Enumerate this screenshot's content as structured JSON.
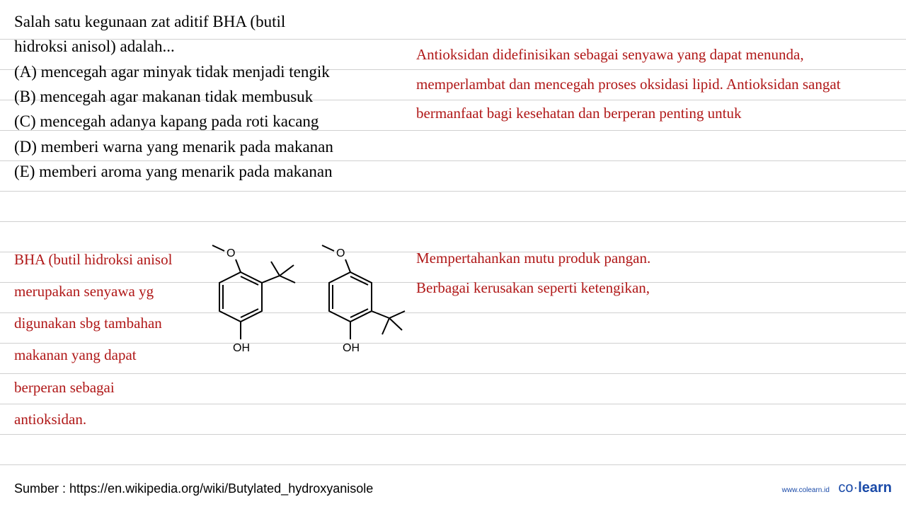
{
  "ruleLines": [
    55,
    98,
    141,
    184,
    227,
    270,
    313,
    356,
    399,
    442,
    485,
    528,
    571,
    614,
    657
  ],
  "question": {
    "intro_line1": "Salah satu kegunaan zat aditif BHA (butil",
    "intro_line2": "hidroksi anisol) adalah...",
    "options": {
      "A": "(A) mencegah agar minyak tidak menjadi tengik",
      "B": "(B) mencegah agar makanan tidak membusuk",
      "C": "(C) mencegah adanya kapang pada roti kacang",
      "D": "(D) memberi warna yang menarik pada makanan",
      "E": "(E) memberi aroma yang menarik pada makanan"
    }
  },
  "annotation_right_top": "Antioksidan didefinisikan sebagai senyawa yang dapat menunda, memperlambat dan mencegah proses oksidasi lipid. Antioksidan sangat bermanfaat bagi kesehatan dan berperan penting untuk",
  "annotation_right_mid_l1": "Mempertahankan mutu produk pangan.",
  "annotation_right_mid_l2": "Berbagai kerusakan seperti ketengikan,",
  "annotation_left": "BHA (butil hidroksi anisol merupakan senyawa yg digunakan sbg tambahan makanan yang dapat berperan sebagai antioksidan.",
  "chem": {
    "label_O": "O",
    "label_OH": "OH",
    "stroke": "#000000"
  },
  "source": "Sumber : https://en.wikipedia.org/wiki/Butylated_hydroxyanisole",
  "brand": {
    "url": "www.colearn.id",
    "name_prefix": "co",
    "name_dot": "·",
    "name_suffix": "learn"
  },
  "colors": {
    "annotation": "#b01818",
    "text": "#000000",
    "rule": "#d0d0d0",
    "brand": "#1a4aa8",
    "background": "#ffffff"
  }
}
